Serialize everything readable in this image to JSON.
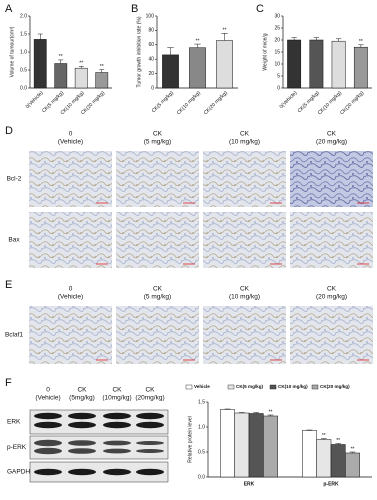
{
  "chart_data": [
    {
      "type": "bar",
      "panel": "A",
      "ylabel": "Volume of tumour(cm³)",
      "categories": [
        "0(Vehicle)",
        "CK(5 mg/kg)",
        "CK(10 mg/kg)",
        "CK(20 mg/kg)"
      ],
      "values": [
        1.35,
        0.68,
        0.55,
        0.43
      ],
      "errors": [
        0.15,
        0.1,
        0.05,
        0.08
      ],
      "colors": [
        "#333333",
        "#666666",
        "#dddddd",
        "#999999"
      ],
      "significance": [
        null,
        "**",
        "**",
        "**"
      ],
      "ylim": [
        0,
        2
      ],
      "yticks": [
        {
          "value": 0,
          "label": "0.0"
        },
        {
          "value": 0.5,
          "label": "0.5"
        },
        {
          "value": 1,
          "label": "1.0"
        },
        {
          "value": 1.5,
          "label": "1.5"
        },
        {
          "value": 2,
          "label": "2.0"
        }
      ]
    },
    {
      "type": "bar",
      "panel": "B",
      "ylabel": "Tumor growth inhibition rate (%)",
      "categories": [
        "CK(5 mg/kg)",
        "CK(10 mg/kg)",
        "CK(20 mg/kg)"
      ],
      "values": [
        46,
        56,
        66
      ],
      "errors": [
        10,
        5,
        10
      ],
      "colors": [
        "#333333",
        "#888888",
        "#dddddd"
      ],
      "significance": [
        null,
        "**",
        "**"
      ],
      "ylim": [
        0,
        100
      ],
      "yticks": [
        0,
        20,
        40,
        60,
        80,
        100
      ]
    },
    {
      "type": "bar",
      "panel": "C",
      "ylabel": "Weight of mice/g",
      "categories": [
        "0(Vehicle)",
        "CK(5 mg/kg)",
        "CK(10 mg/kg)",
        "CK(20 mg/kg)"
      ],
      "values": [
        20,
        20,
        19.5,
        17
      ],
      "errors": [
        1,
        1,
        1,
        1
      ],
      "colors": [
        "#333333",
        "#555555",
        "#dddddd",
        "#999999"
      ],
      "significance": [
        null,
        null,
        null,
        "**"
      ],
      "ylim": [
        0,
        30
      ],
      "yticks": [
        0,
        5,
        10,
        15,
        20,
        25,
        30
      ]
    },
    {
      "type": "bar",
      "ylabel": "Relative protein level",
      "categories": [
        "ERK",
        "p-ERK"
      ],
      "legend": "top",
      "series": [
        {
          "name": "Vehicle",
          "color": "#ffffff",
          "values": [
            1.35,
            0.93
          ],
          "errors": [
            0.01,
            0.01
          ]
        },
        {
          "name": "CK(5 mg/kg)",
          "color": "#e6e6e6",
          "values": [
            1.28,
            0.75
          ],
          "errors": [
            0.01,
            0.02
          ],
          "significance": [
            null,
            "**"
          ]
        },
        {
          "name": "CK(10 mg/kg)",
          "color": "#555555",
          "values": [
            1.27,
            0.65
          ],
          "errors": [
            0.02,
            0.02
          ],
          "significance": [
            null,
            "**"
          ]
        },
        {
          "name": "CK(20 mg/kg)",
          "color": "#aaaaaa",
          "values": [
            1.22,
            0.48
          ],
          "errors": [
            0.02,
            0.02
          ],
          "significance": [
            "**",
            "**"
          ]
        }
      ],
      "ylim": [
        0,
        1.5
      ],
      "yticks": [
        {
          "value": 0,
          "label": "0.0"
        },
        {
          "value": 0.5,
          "label": "0.5"
        },
        {
          "value": 1,
          "label": "1.0"
        },
        {
          "value": 1.5,
          "label": "1.5"
        }
      ]
    }
  ],
  "histology": [
    {
      "panel": "D",
      "columns": [
        [
          "0",
          "(Vehicle)"
        ],
        [
          "CK",
          "(5 mg/kg)"
        ],
        [
          "CK",
          "(10 mg/kg)"
        ],
        [
          "CK",
          "(20 mg/kg)"
        ]
      ],
      "rows": [
        "Bcl-2",
        "Bax"
      ]
    },
    {
      "panel": "E",
      "columns": [
        [
          "0",
          "(Vehicle)"
        ],
        [
          "CK",
          "(5 mg/kg)"
        ],
        [
          "CK",
          "(10 mg/kg)"
        ],
        [
          "CK",
          "(20 mg/kg)"
        ]
      ],
      "rows": [
        "Bclaf1"
      ]
    }
  ],
  "western": {
    "panel": "F",
    "lanes": [
      [
        "0",
        "(Vehicle)"
      ],
      [
        "CK",
        "(5mg/kg)"
      ],
      [
        "CK",
        "(10mg/kg)"
      ],
      [
        "CK",
        "(20mg/kg)"
      ]
    ],
    "rows": [
      "ERK",
      "p-ERK",
      "GAPDH"
    ]
  }
}
